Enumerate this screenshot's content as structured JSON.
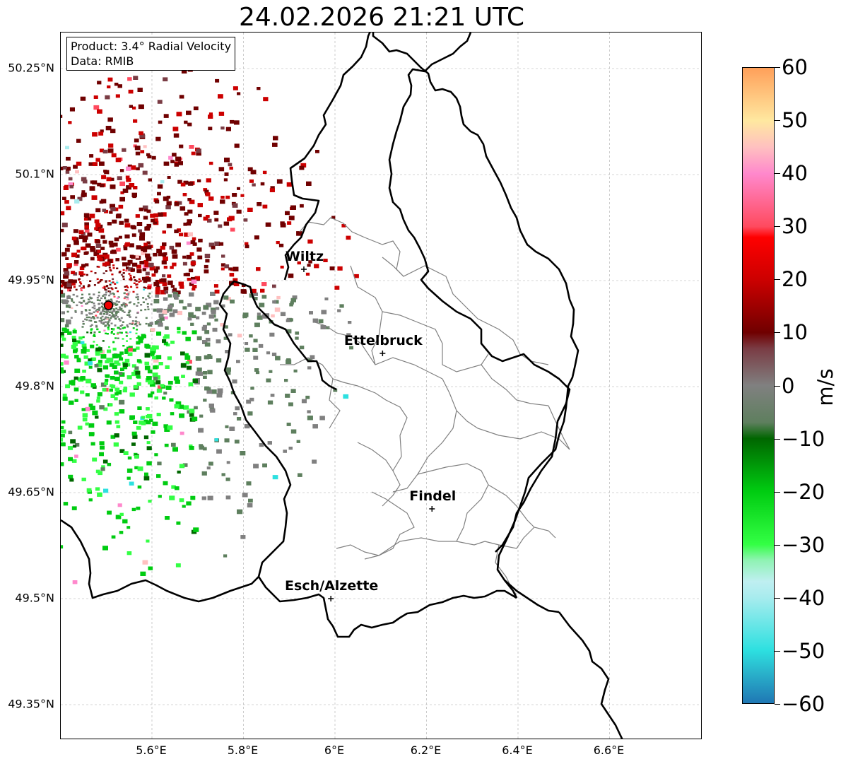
{
  "title": "24.02.2026 21:21 UTC",
  "info": {
    "product": "Product: 3.4° Radial Velocity",
    "data": "Data: RMIB"
  },
  "map": {
    "lon_range": [
      5.4,
      6.8
    ],
    "lat_range": [
      49.3,
      50.3
    ],
    "lat_ticks": [
      {
        "value": 50.25,
        "label": "50.25°N"
      },
      {
        "value": 50.1,
        "label": "50.1°N"
      },
      {
        "value": 49.95,
        "label": "49.95°N"
      },
      {
        "value": 49.8,
        "label": "49.8°N"
      },
      {
        "value": 49.65,
        "label": "49.65°N"
      },
      {
        "value": 49.5,
        "label": "49.5°N"
      },
      {
        "value": 49.35,
        "label": "49.35°N"
      }
    ],
    "lon_ticks": [
      {
        "value": 5.6,
        "label": "5.6°E"
      },
      {
        "value": 5.8,
        "label": "5.8°E"
      },
      {
        "value": 6.0,
        "label": "6°E"
      },
      {
        "value": 6.2,
        "label": "6.2°E"
      },
      {
        "value": 6.4,
        "label": "6.4°E"
      },
      {
        "value": 6.6,
        "label": "6.6°E"
      }
    ],
    "radar": {
      "lon": 5.505,
      "lat": 49.915
    },
    "cities": [
      {
        "name": "Wiltz",
        "lon": 5.932,
        "lat": 49.966
      },
      {
        "name": "Ettelbruck",
        "lon": 6.104,
        "lat": 49.847
      },
      {
        "name": "Findel",
        "lon": 6.212,
        "lat": 49.627
      },
      {
        "name": "Esch/Alzette",
        "lon": 5.991,
        "lat": 49.5
      }
    ],
    "grid": true
  },
  "colorbar": {
    "label": "m/s",
    "min": -60,
    "max": 60,
    "ticks": [
      {
        "value": 60,
        "label": "60"
      },
      {
        "value": 50,
        "label": "50"
      },
      {
        "value": 40,
        "label": "40"
      },
      {
        "value": 30,
        "label": "30"
      },
      {
        "value": 20,
        "label": "20"
      },
      {
        "value": 10,
        "label": "10"
      },
      {
        "value": 0,
        "label": "0"
      },
      {
        "value": -10,
        "label": "−10"
      },
      {
        "value": -20,
        "label": "−20"
      },
      {
        "value": -30,
        "label": "−30"
      },
      {
        "value": -40,
        "label": "−40"
      },
      {
        "value": -50,
        "label": "−50"
      },
      {
        "value": -60,
        "label": "−60"
      }
    ],
    "stops": [
      {
        "value": -60,
        "color": "#1f77b4"
      },
      {
        "value": -54,
        "color": "#2ab5cc"
      },
      {
        "value": -50,
        "color": "#2de0e0"
      },
      {
        "value": -40,
        "color": "#a8ecee"
      },
      {
        "value": -37,
        "color": "#bfeff1"
      },
      {
        "value": -33,
        "color": "#8ff3b3"
      },
      {
        "value": -30,
        "color": "#33ff44"
      },
      {
        "value": -20,
        "color": "#00cc11"
      },
      {
        "value": -10,
        "color": "#006600"
      },
      {
        "value": -7,
        "color": "#5e7f5e"
      },
      {
        "value": 0,
        "color": "#808080"
      },
      {
        "value": 7,
        "color": "#7a3c44"
      },
      {
        "value": 10,
        "color": "#700000"
      },
      {
        "value": 20,
        "color": "#cc0000"
      },
      {
        "value": 28,
        "color": "#ff0000"
      },
      {
        "value": 30,
        "color": "#ff4a5e"
      },
      {
        "value": 40,
        "color": "#ff88cc"
      },
      {
        "value": 45,
        "color": "#ffc0c0"
      },
      {
        "value": 50,
        "color": "#ffe8a0"
      },
      {
        "value": 60,
        "color": "#ffa05a"
      }
    ]
  },
  "colors": {
    "border": "#000000",
    "admin_border": "#808080",
    "grid": "#aaaaaa",
    "radar_marker": "#ee0000"
  }
}
